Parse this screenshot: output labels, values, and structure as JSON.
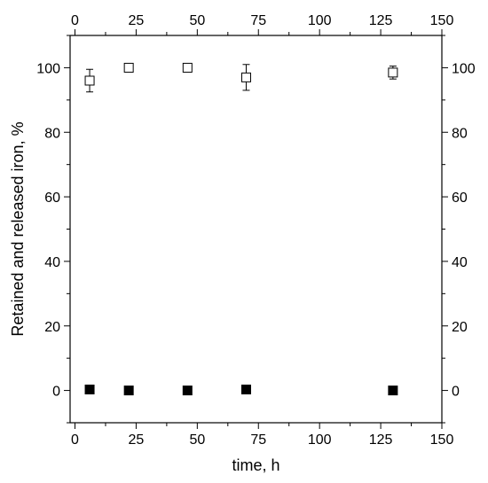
{
  "chart_data": {
    "type": "scatter",
    "title": "",
    "xlabel": "time, h",
    "ylabel": "Retained and released iron, %",
    "xlim": [
      -2,
      150
    ],
    "ylim": [
      -10,
      110
    ],
    "x_ticks": [
      0,
      25,
      50,
      75,
      100,
      125,
      150
    ],
    "x_tick_labels": [
      "0",
      "25",
      "50",
      "75",
      "100",
      "125",
      "150"
    ],
    "top_ticks": [
      0,
      25,
      50,
      75,
      100,
      125,
      150
    ],
    "top_tick_labels": [
      "0",
      "25",
      "50",
      "75",
      "100",
      "125",
      "150"
    ],
    "y_ticks": [
      0,
      20,
      40,
      60,
      80,
      100
    ],
    "y_tick_labels": [
      "0",
      "20",
      "40",
      "60",
      "80",
      "100"
    ],
    "grid": false,
    "legend": "none",
    "series": [
      {
        "marker": "open-square",
        "color": "#000000",
        "x": [
          6,
          22,
          46,
          70,
          130
        ],
        "y": [
          96,
          100,
          100,
          97,
          98.5
        ],
        "error": [
          3.5,
          0,
          0,
          4,
          2
        ]
      },
      {
        "marker": "filled-square",
        "color": "#000000",
        "x": [
          6,
          22,
          46,
          70,
          130
        ],
        "y": [
          0.3,
          0,
          0,
          0.3,
          0
        ],
        "error": [
          0,
          0,
          0,
          0,
          0
        ]
      }
    ]
  }
}
